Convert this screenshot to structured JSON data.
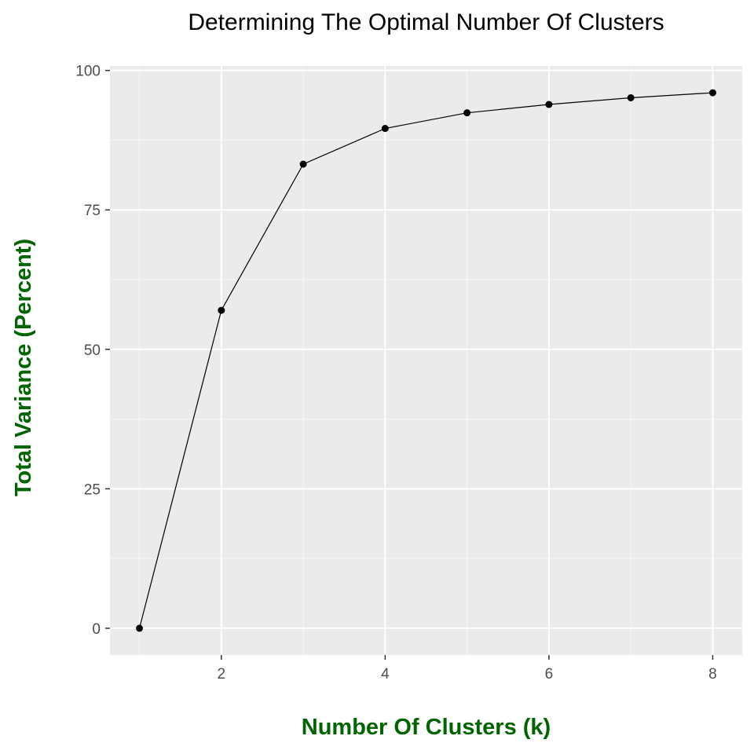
{
  "colors": {
    "panel_bg": "#ebebeb",
    "grid_major": "#ffffff",
    "line": "#000000",
    "point": "#000000",
    "axis_title": "#006400",
    "tick_text": "#4d4d4d"
  },
  "chart_data": {
    "type": "line",
    "title": "Determining The Optimal Number Of Clusters",
    "xlabel": "Number Of Clusters (k)",
    "ylabel": "Total Variance (Percent)",
    "x": [
      1,
      2,
      3,
      4,
      5,
      6,
      7,
      8
    ],
    "series": [
      {
        "values": [
          0,
          57,
          83.2,
          89.6,
          92.4,
          93.9,
          95.1,
          96.0
        ]
      }
    ],
    "xlim": [
      0.64,
      8.36
    ],
    "ylim": [
      -4.8,
      100.8
    ],
    "xticks": [
      2,
      4,
      6,
      8
    ],
    "yticks": [
      0,
      25,
      50,
      75,
      100
    ],
    "grid": true,
    "legend": "none"
  }
}
